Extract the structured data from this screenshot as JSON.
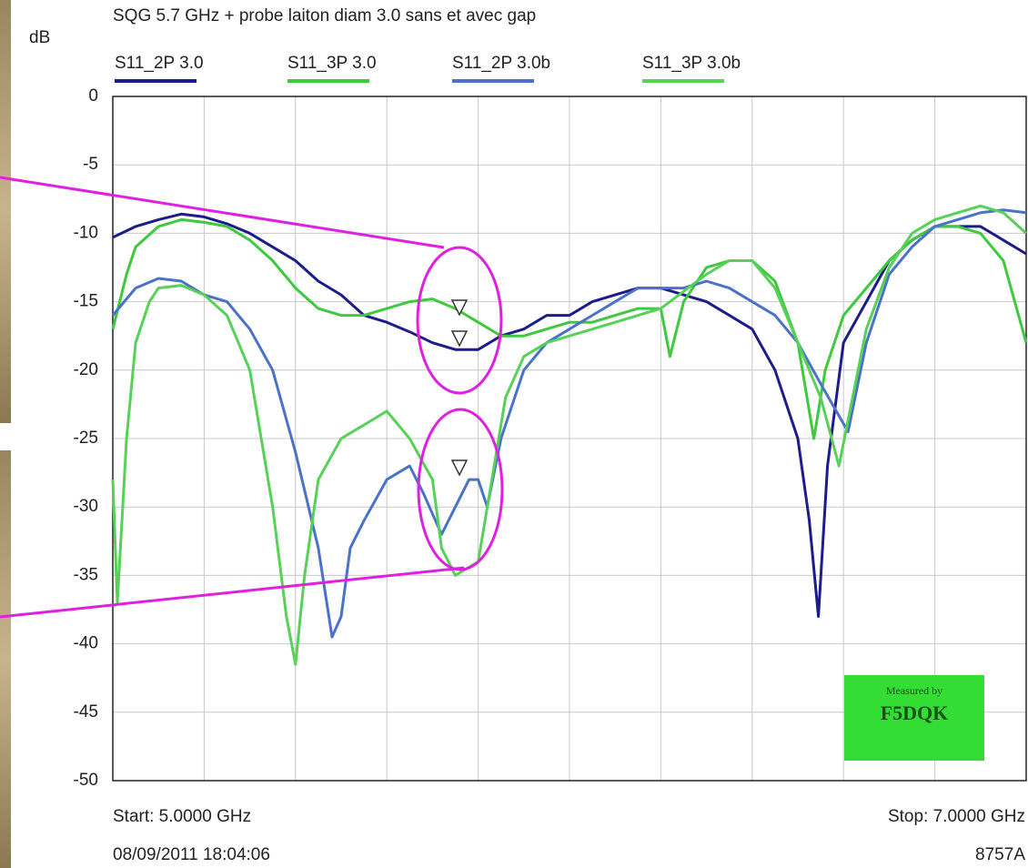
{
  "chart_data": {
    "type": "line",
    "title": "SQG 5.7 GHz + probe laiton diam 3.0  sans et avec gap",
    "y_label": "dB",
    "xlim": [
      5.0,
      7.0
    ],
    "x_grid_divisions": 10,
    "ylim": [
      -50,
      0
    ],
    "yticks": [
      0,
      -5,
      -10,
      -15,
      -20,
      -25,
      -30,
      -35,
      -40,
      -45,
      -50
    ],
    "grid": true,
    "start_label": "Start: 5.0000 GHz",
    "stop_label": "Stop: 7.0000 GHz",
    "timestamp": "08/09/2011 18:04:06",
    "instrument": "8757A",
    "badge": [
      "Measured by",
      "F5DQK"
    ],
    "series": [
      {
        "name": "S11_2P 3.0",
        "color": "#1c1c8a",
        "x": [
          5.0,
          5.05,
          5.1,
          5.15,
          5.2,
          5.25,
          5.3,
          5.35,
          5.4,
          5.45,
          5.5,
          5.55,
          5.6,
          5.65,
          5.7,
          5.75,
          5.8,
          5.85,
          5.9,
          5.95,
          6.0,
          6.05,
          6.1,
          6.15,
          6.2,
          6.25,
          6.3,
          6.35,
          6.4,
          6.45,
          6.5,
          6.525,
          6.545,
          6.565,
          6.6,
          6.65,
          6.7,
          6.75,
          6.8,
          6.85,
          6.9,
          6.95,
          7.0
        ],
        "values": [
          -10.3,
          -9.5,
          -9,
          -8.6,
          -8.8,
          -9.3,
          -10,
          -11,
          -12,
          -13.5,
          -14.5,
          -16,
          -16.5,
          -17.2,
          -18,
          -18.5,
          -18.5,
          -17.5,
          -17,
          -16,
          -16,
          -15,
          -14.5,
          -14,
          -14,
          -14.5,
          -15,
          -16,
          -17,
          -20,
          -25,
          -31,
          -38,
          -27,
          -18,
          -15,
          -12,
          -10.5,
          -9.5,
          -9.5,
          -9.5,
          -10.5,
          -11.5
        ]
      },
      {
        "name": "S11_3P 3.0",
        "color": "#3ec93e",
        "x": [
          5.0,
          5.03,
          5.05,
          5.1,
          5.15,
          5.2,
          5.25,
          5.3,
          5.35,
          5.4,
          5.45,
          5.5,
          5.55,
          5.6,
          5.65,
          5.7,
          5.75,
          5.8,
          5.85,
          5.9,
          5.95,
          6.0,
          6.05,
          6.1,
          6.15,
          6.2,
          6.22,
          6.25,
          6.3,
          6.35,
          6.4,
          6.45,
          6.5,
          6.535,
          6.56,
          6.6,
          6.65,
          6.7,
          6.75,
          6.8,
          6.85,
          6.9,
          6.95,
          7.0
        ],
        "values": [
          -17,
          -13,
          -11,
          -9.5,
          -9,
          -9.2,
          -9.5,
          -10.5,
          -12,
          -14,
          -15.5,
          -16,
          -16,
          -15.5,
          -15,
          -14.8,
          -15.5,
          -16.5,
          -17.5,
          -17.5,
          -17,
          -16.5,
          -16.5,
          -16,
          -15.5,
          -15.5,
          -19,
          -15,
          -12.5,
          -12,
          -12,
          -13.5,
          -18,
          -25,
          -20,
          -16,
          -14,
          -12,
          -10.5,
          -9.5,
          -9.5,
          -10,
          -12,
          -18
        ]
      },
      {
        "name": "S11_2P 3.0b",
        "color": "#4a72c9",
        "x": [
          5.0,
          5.05,
          5.1,
          5.15,
          5.2,
          5.25,
          5.3,
          5.35,
          5.4,
          5.45,
          5.48,
          5.5,
          5.52,
          5.55,
          5.6,
          5.65,
          5.68,
          5.72,
          5.75,
          5.78,
          5.8,
          5.82,
          5.85,
          5.9,
          5.95,
          6.0,
          6.05,
          6.1,
          6.15,
          6.2,
          6.25,
          6.3,
          6.35,
          6.4,
          6.45,
          6.5,
          6.55,
          6.61,
          6.65,
          6.7,
          6.75,
          6.8,
          6.85,
          6.9,
          6.95,
          7.0
        ],
        "values": [
          -16,
          -14,
          -13.3,
          -13.5,
          -14.5,
          -15,
          -17,
          -20,
          -26,
          -33,
          -39.5,
          -38,
          -33,
          -31,
          -28,
          -27,
          -29,
          -32,
          -30,
          -28,
          -28,
          -30,
          -25,
          -20,
          -18,
          -17,
          -16,
          -15,
          -14,
          -14,
          -14,
          -13.5,
          -14,
          -15,
          -16,
          -18,
          -21,
          -24.5,
          -18,
          -13,
          -11,
          -9.5,
          -9,
          -8.5,
          -8.3,
          -8.5
        ]
      },
      {
        "name": "S11_3P 3.0b",
        "color": "#57d157",
        "x": [
          5.0,
          5.01,
          5.03,
          5.05,
          5.08,
          5.1,
          5.15,
          5.2,
          5.25,
          5.3,
          5.35,
          5.38,
          5.4,
          5.42,
          5.45,
          5.5,
          5.55,
          5.6,
          5.65,
          5.7,
          5.72,
          5.75,
          5.8,
          5.83,
          5.86,
          5.9,
          5.95,
          6.0,
          6.1,
          6.2,
          6.3,
          6.35,
          6.4,
          6.45,
          6.5,
          6.55,
          6.59,
          6.62,
          6.65,
          6.7,
          6.75,
          6.8,
          6.85,
          6.9,
          6.95,
          7.0
        ],
        "values": [
          -28,
          -37,
          -25,
          -18,
          -15,
          -14,
          -13.8,
          -14.5,
          -16,
          -20,
          -30,
          -38,
          -41.5,
          -35,
          -28,
          -25,
          -24,
          -23,
          -25,
          -28,
          -33,
          -35,
          -34,
          -28,
          -22,
          -19,
          -18,
          -17.5,
          -16.5,
          -15.5,
          -13,
          -12,
          -12,
          -14,
          -18,
          -22,
          -27,
          -22,
          -17,
          -12.5,
          -10,
          -9,
          -8.5,
          -8,
          -8.5,
          -10
        ]
      }
    ]
  }
}
